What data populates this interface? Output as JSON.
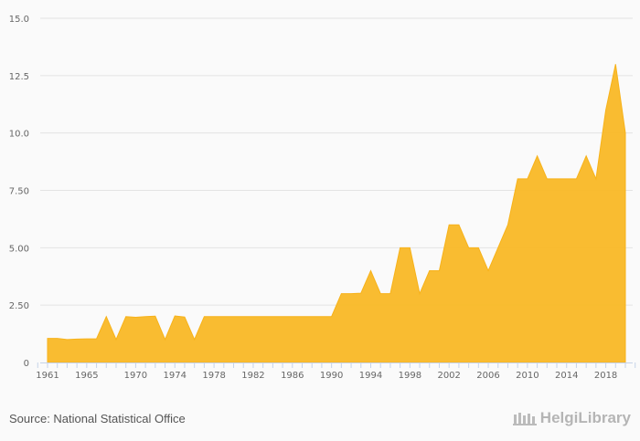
{
  "chart_data": {
    "type": "area",
    "title": "",
    "xlabel": "",
    "ylabel": "",
    "x": [
      1961,
      1962,
      1963,
      1964,
      1965,
      1966,
      1967,
      1968,
      1969,
      1970,
      1971,
      1972,
      1973,
      1974,
      1975,
      1976,
      1977,
      1978,
      1979,
      1980,
      1981,
      1982,
      1983,
      1984,
      1985,
      1986,
      1987,
      1988,
      1989,
      1990,
      1991,
      1992,
      1993,
      1994,
      1995,
      1996,
      1997,
      1998,
      1999,
      2000,
      2001,
      2002,
      2003,
      2004,
      2005,
      2006,
      2007,
      2008,
      2009,
      2010,
      2011,
      2012,
      2013,
      2014,
      2015,
      2016,
      2017,
      2018,
      2019,
      2020
    ],
    "values": [
      1.05,
      1.05,
      1.0,
      1.02,
      1.03,
      1.03,
      2.0,
      1.0,
      2.0,
      1.97,
      2.0,
      2.02,
      1.0,
      2.03,
      1.98,
      1.0,
      2.0,
      2.0,
      2.0,
      2.0,
      2.0,
      2.0,
      2.0,
      2.0,
      2.0,
      2.0,
      2.0,
      2.0,
      2.0,
      2.0,
      3.0,
      3.0,
      3.02,
      4.0,
      3.0,
      3.0,
      5.0,
      5.0,
      3.0,
      4.0,
      4.0,
      6.0,
      6.0,
      5.0,
      5.0,
      4.0,
      5.0,
      6.0,
      8.0,
      8.0,
      9.0,
      8.0,
      8.0,
      8.0,
      8.0,
      9.0,
      8.0,
      11.0,
      13.0,
      10.0
    ],
    "ylim": [
      0,
      15
    ],
    "yticks": [
      "0",
      "2.50",
      "5.00",
      "7.50",
      "10.0",
      "12.5",
      "15.0"
    ],
    "ytick_values": [
      0,
      2.5,
      5,
      7.5,
      10,
      12.5,
      15
    ],
    "xtick_labels": [
      "1961",
      "1965",
      "1970",
      "1974",
      "1978",
      "1982",
      "1986",
      "1990",
      "1994",
      "1998",
      "2002",
      "2006",
      "2010",
      "2014",
      "2018"
    ],
    "grid": true,
    "color": "#f9b826"
  },
  "footer": {
    "source": "Source: National Statistical Office",
    "logo": "HelgiLibrary"
  }
}
